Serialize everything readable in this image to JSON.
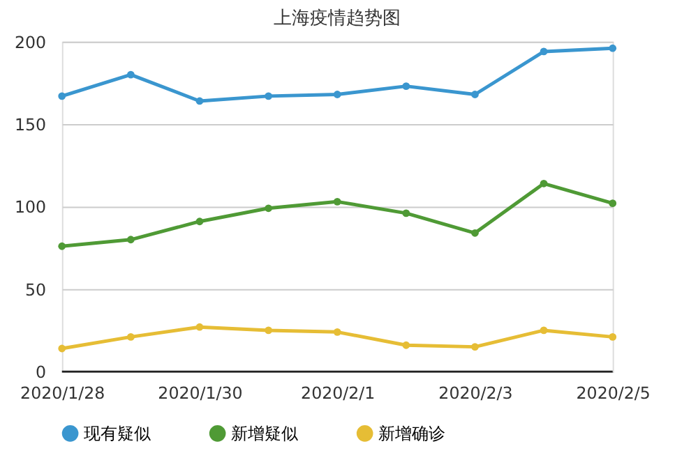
{
  "chart_data": {
    "type": "line",
    "title": "上海疫情趋势图",
    "categories": [
      "2020/1/28",
      null,
      "2020/1/30",
      null,
      "2020/2/1",
      null,
      "2020/2/3",
      null,
      "2020/2/5"
    ],
    "series": [
      {
        "name": "现有疑似",
        "color": "#3a96cf",
        "values": [
          167,
          180,
          164,
          167,
          168,
          173,
          168,
          194,
          196
        ]
      },
      {
        "name": "新增疑似",
        "color": "#4f9a35",
        "values": [
          76,
          80,
          91,
          99,
          103,
          96,
          84,
          114,
          102
        ]
      },
      {
        "name": "新增确诊",
        "color": "#e6bd35",
        "values": [
          14,
          21,
          27,
          25,
          24,
          16,
          15,
          25,
          21
        ]
      }
    ],
    "ylim": [
      0,
      200
    ],
    "yticks": [
      0,
      50,
      100,
      150,
      200
    ],
    "grid": "y",
    "legend": "bottom",
    "marker": "circle",
    "line_style": "solid"
  }
}
